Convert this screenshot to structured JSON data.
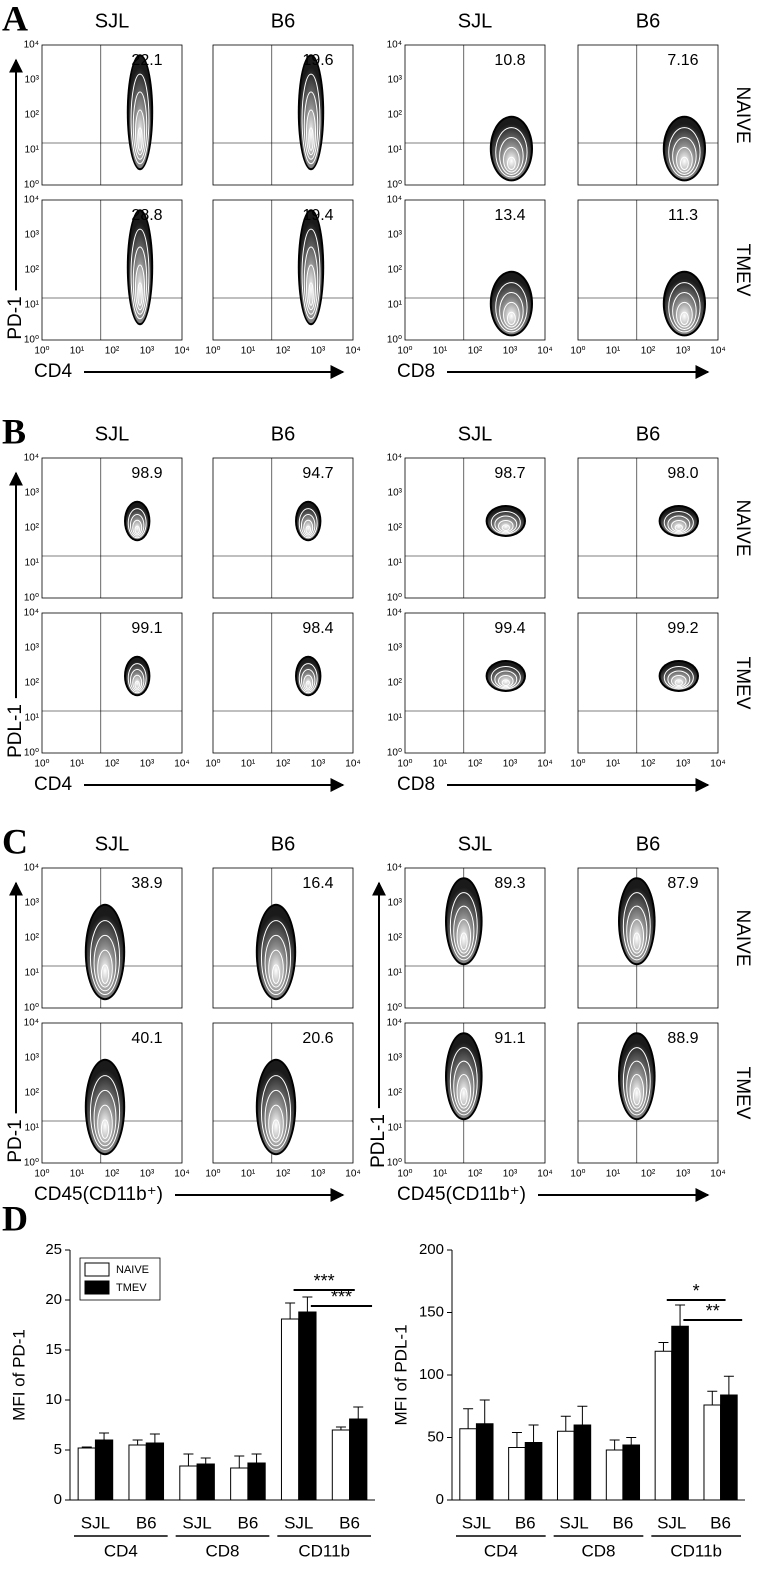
{
  "flow_ticks": [
    "10⁰",
    "10¹",
    "10²",
    "10³",
    "10⁴"
  ],
  "panels": [
    {
      "letter": "A",
      "rows": [
        "NAIVE",
        "TMEV"
      ],
      "groups": [
        {
          "columns": [
            "SJL",
            "B6"
          ],
          "y_label": "PD-1",
          "x_label": "CD4",
          "percent": [
            [
              "22.1",
              "19.6"
            ],
            [
              "28.8",
              "19.4"
            ]
          ]
        },
        {
          "columns": [
            "SJL",
            "B6"
          ],
          "x_label": "CD8",
          "percent": [
            [
              "10.8",
              "7.16"
            ],
            [
              "13.4",
              "11.3"
            ]
          ]
        }
      ]
    },
    {
      "letter": "B",
      "rows": [
        "NAIVE",
        "TMEV"
      ],
      "groups": [
        {
          "columns": [
            "SJL",
            "B6"
          ],
          "y_label": "PDL-1",
          "x_label": "CD4",
          "percent": [
            [
              "98.9",
              "94.7"
            ],
            [
              "99.1",
              "98.4"
            ]
          ]
        },
        {
          "columns": [
            "SJL",
            "B6"
          ],
          "x_label": "CD8",
          "percent": [
            [
              "98.7",
              "98.0"
            ],
            [
              "99.4",
              "99.2"
            ]
          ]
        }
      ]
    },
    {
      "letter": "C",
      "rows": [
        "NAIVE",
        "TMEV"
      ],
      "groups": [
        {
          "columns": [
            "SJL",
            "B6"
          ],
          "y_label": "PD-1",
          "x_label": "CD45(CD11b⁺)",
          "percent": [
            [
              "38.9",
              "16.4"
            ],
            [
              "40.1",
              "20.6"
            ]
          ]
        },
        {
          "columns": [
            "SJL",
            "B6"
          ],
          "y_label": "PDL-1",
          "x_label": "CD45(CD11b⁺)",
          "percent": [
            [
              "89.3",
              "87.9"
            ],
            [
              "91.1",
              "88.9"
            ]
          ]
        }
      ]
    },
    {
      "letter": "D"
    }
  ],
  "chart_data": [
    {
      "type": "bar",
      "y_label": "MFI of PD-1",
      "categories": [
        "SJL",
        "B6",
        "SJL",
        "B6",
        "SJL",
        "B6"
      ],
      "groups": [
        "CD4",
        "CD8",
        "CD11b"
      ],
      "series": [
        {
          "name": "NAIVE",
          "color": "#ffffff",
          "values": [
            5.2,
            5.5,
            3.4,
            3.2,
            18.1,
            7.0
          ],
          "errors": [
            0.1,
            0.5,
            1.2,
            1.2,
            1.6,
            0.3
          ]
        },
        {
          "name": "TMEV",
          "color": "#000000",
          "values": [
            6.0,
            5.7,
            3.6,
            3.7,
            18.8,
            8.1
          ],
          "errors": [
            0.7,
            0.9,
            0.6,
            0.9,
            1.5,
            1.2
          ]
        }
      ],
      "ylim": [
        0,
        25
      ],
      "yticks": [
        0,
        5,
        10,
        15,
        20,
        25
      ],
      "legend": "upper left",
      "annotations": [
        {
          "text": "***",
          "from": 4,
          "to": 5,
          "y": 21.0
        },
        {
          "text": "***",
          "from": 4,
          "to": 5,
          "y": 19.4
        }
      ]
    },
    {
      "type": "bar",
      "y_label": "MFI of PDL-1",
      "categories": [
        "SJL",
        "B6",
        "SJL",
        "B6",
        "SJL",
        "B6"
      ],
      "groups": [
        "CD4",
        "CD8",
        "CD11b"
      ],
      "series": [
        {
          "name": "NAIVE",
          "color": "#ffffff",
          "values": [
            57,
            42,
            55,
            40,
            119,
            76
          ],
          "errors": [
            16,
            12,
            12,
            8,
            7,
            11
          ]
        },
        {
          "name": "TMEV",
          "color": "#000000",
          "values": [
            61,
            46,
            60,
            44,
            139,
            84
          ],
          "errors": [
            19,
            14,
            15,
            6,
            17,
            15
          ]
        }
      ],
      "ylim": [
        0,
        200
      ],
      "yticks": [
        0,
        50,
        100,
        150,
        200
      ],
      "annotations": [
        {
          "text": "*",
          "from": 4,
          "to": 5,
          "y": 160
        },
        {
          "text": "**",
          "from": 4,
          "to": 5,
          "y": 144
        }
      ]
    }
  ]
}
